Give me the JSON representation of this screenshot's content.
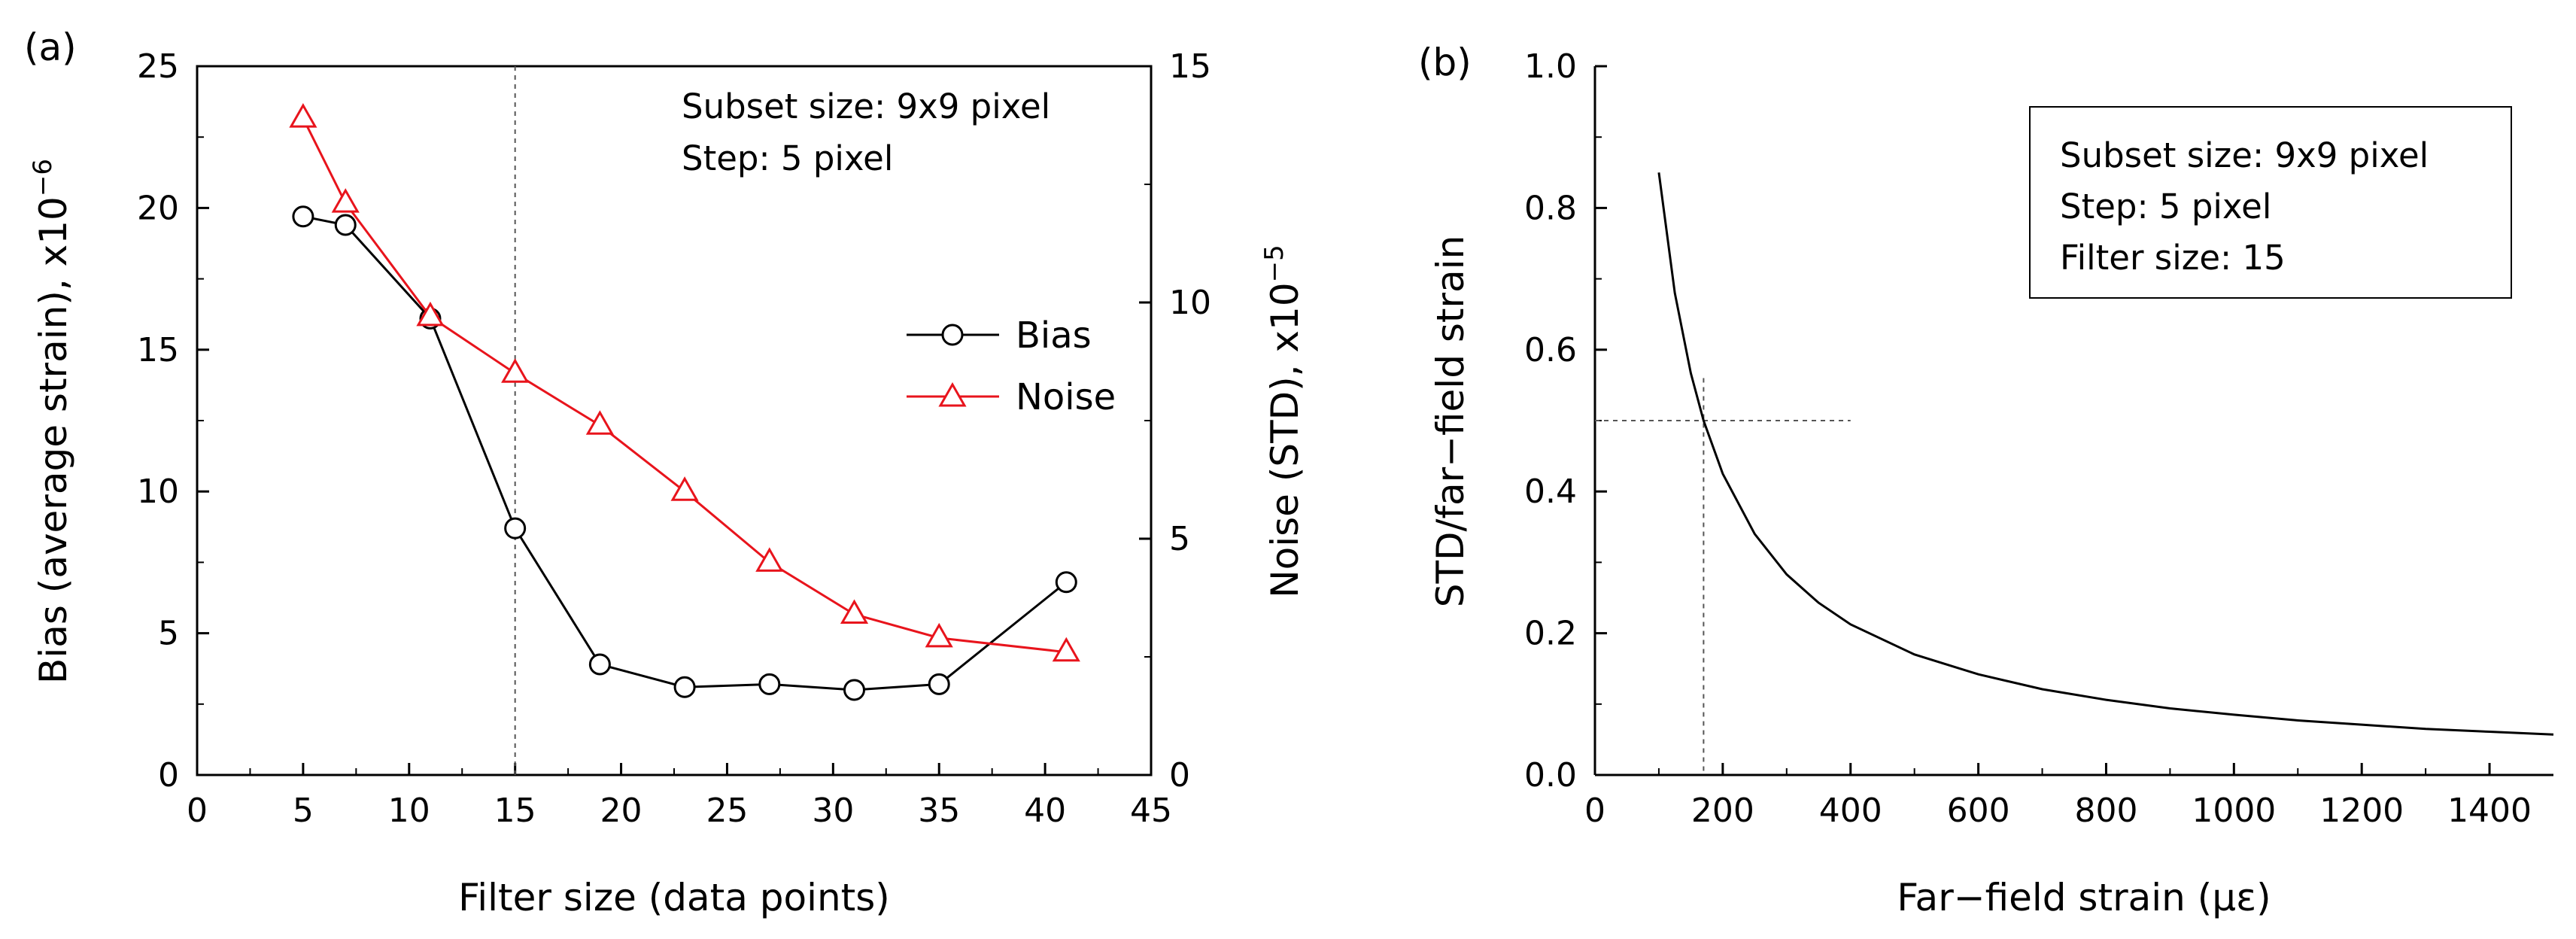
{
  "figure": {
    "panel_a_label": "(a)",
    "panel_b_label": "(b)"
  },
  "chart_data": [
    {
      "type": "line",
      "panel": "(a)",
      "xlabel": "Filter size (data points)",
      "ylabel_left": "Bias (average strain), x10",
      "ylabel_left_exp": "−6",
      "ylabel_right": "Noise (STD), x10",
      "ylabel_right_exp": "−5",
      "xlim": [
        0,
        45
      ],
      "ylim_left": [
        0,
        25
      ],
      "ylim_right": [
        0,
        15
      ],
      "xticks": [
        "0",
        "5",
        "10",
        "15",
        "20",
        "25",
        "30",
        "35",
        "40",
        "45"
      ],
      "yticks_left": [
        "0",
        "5",
        "10",
        "15",
        "20",
        "25"
      ],
      "yticks_right": [
        "0",
        "5",
        "10",
        "15"
      ],
      "annotation_lines": [
        "Subset size: 9x9 pixel",
        "Step: 5 pixel"
      ],
      "reference_line_x": 15,
      "legend_position": "middle-right",
      "series": [
        {
          "name": "Bias",
          "axis": "left",
          "marker": "circle",
          "color": "#000000",
          "x": [
            5,
            7,
            11,
            15,
            19,
            23,
            27,
            31,
            35,
            41
          ],
          "values": [
            19.7,
            19.4,
            16.1,
            8.7,
            3.9,
            3.1,
            3.2,
            3.0,
            3.2,
            6.8
          ]
        },
        {
          "name": "Noise",
          "axis": "right",
          "marker": "triangle",
          "color": "#e8141c",
          "x": [
            5,
            7,
            11,
            15,
            19,
            23,
            27,
            31,
            35,
            41
          ],
          "values": [
            13.9,
            12.1,
            9.7,
            8.5,
            7.4,
            6.0,
            4.5,
            3.4,
            2.9,
            2.6
          ]
        }
      ]
    },
    {
      "type": "line",
      "panel": "(b)",
      "xlabel": "Far−field strain (με)",
      "ylabel": "STD/far−field strain",
      "xlim": [
        0,
        1500
      ],
      "ylim": [
        0,
        1.0
      ],
      "xticks": [
        "0",
        "200",
        "400",
        "600",
        "800",
        "1000",
        "1200",
        "1400"
      ],
      "yticks": [
        "0.0",
        "0.2",
        "0.4",
        "0.6",
        "0.8",
        "1.0"
      ],
      "annotation_lines": [
        "Subset size: 9x9 pixel",
        "Step: 5 pixel",
        "Filter size: 15"
      ],
      "reference_lines": {
        "y": 0.5,
        "x": 170
      },
      "series": [
        {
          "color": "#000000",
          "x": [
            100,
            125,
            150,
            170,
            200,
            250,
            300,
            350,
            400,
            500,
            600,
            700,
            800,
            900,
            1000,
            1100,
            1200,
            1300,
            1400,
            1500
          ],
          "values": [
            0.85,
            0.68,
            0.567,
            0.5,
            0.425,
            0.34,
            0.283,
            0.243,
            0.2125,
            0.17,
            0.142,
            0.121,
            0.106,
            0.094,
            0.085,
            0.077,
            0.071,
            0.065,
            0.061,
            0.057
          ]
        }
      ]
    }
  ]
}
